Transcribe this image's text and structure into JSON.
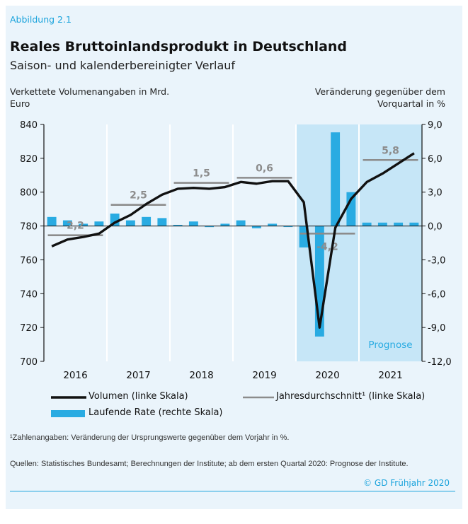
{
  "header": {
    "figure_label": "Abbildung 2.1",
    "title": "Reales Bruttoinlandsprodukt in Deutschland",
    "subtitle": "Saison- und kalenderbereinigter Verlauf"
  },
  "chart_data": {
    "type": "bar",
    "ylabel_left": "Verkettete Volumenangaben in Mrd. Euro",
    "ylabel_right": "Veränderung gegenüber dem Vorquartal in %",
    "ylim_left": [
      700,
      840
    ],
    "ylim_right": [
      -12,
      9
    ],
    "yticks_left": [
      "700",
      "720",
      "740",
      "760",
      "780",
      "800",
      "820",
      "840"
    ],
    "yticks_right": [
      "-12,0",
      "-9,0",
      "-6,0",
      "-3,0",
      "0,0",
      "3,0",
      "6,0",
      "9,0"
    ],
    "years": [
      "2016",
      "2017",
      "2018",
      "2019",
      "2020",
      "2021"
    ],
    "quarters": [
      "2016Q1",
      "2016Q2",
      "2016Q3",
      "2016Q4",
      "2017Q1",
      "2017Q2",
      "2017Q3",
      "2017Q4",
      "2018Q1",
      "2018Q2",
      "2018Q3",
      "2018Q4",
      "2019Q1",
      "2019Q2",
      "2019Q3",
      "2019Q4",
      "2020Q1",
      "2020Q2",
      "2020Q3",
      "2020Q4",
      "2021Q1",
      "2021Q2",
      "2021Q3",
      "2021Q4"
    ],
    "series": [
      {
        "name": "Volumen (linke Skala)",
        "type": "line",
        "axis": "left",
        "color": "#111111",
        "values": [
          768,
          772,
          773.5,
          775.5,
          782,
          786.5,
          793,
          798.5,
          802,
          802.5,
          802,
          803,
          806,
          805,
          806.5,
          806.5,
          794,
          720,
          779,
          796,
          806,
          811,
          817,
          823
        ]
      },
      {
        "name": "Laufende Rate (rechte Skala)",
        "type": "bar",
        "axis": "right",
        "color": "#29abe2",
        "values": [
          0.8,
          0.5,
          0.2,
          0.4,
          1.1,
          0.5,
          0.8,
          0.7,
          0.1,
          0.4,
          -0.1,
          0.2,
          0.5,
          -0.2,
          0.2,
          0.0,
          -1.9,
          -9.8,
          8.3,
          3.0,
          0.3,
          0.3,
          0.3,
          0.3
        ]
      }
    ],
    "annual_averages": {
      "name": "Jahresdurchschnitt¹ (linke Skala)",
      "color": "#8c8c8c",
      "values": [
        774.5,
        792.5,
        805.5,
        808.5,
        775.5,
        819
      ],
      "labels": [
        "2,2",
        "2,5",
        "1,5",
        "0,6",
        "-4,2",
        "5,8"
      ]
    },
    "forecast_label": "Prognose",
    "shading": {
      "color": "#c6e6f7",
      "from_quarter": "2020Q1"
    }
  },
  "legend": {
    "line": "Volumen (linke Skala)",
    "avg": "Jahresdurchschnitt¹ (linke Skala)",
    "bar": "Laufende Rate (rechte Skala)"
  },
  "notes": {
    "footnote": "¹Zahlenangaben: Veränderung der Ursprungswerte gegenüber dem Vorjahr in %.",
    "sources": "Quellen: Statistisches Bundesamt; Berechnungen der Institute; ab dem ersten Quartal 2020: Prognose der Institute.",
    "copyright": "© GD Frühjahr 2020"
  }
}
